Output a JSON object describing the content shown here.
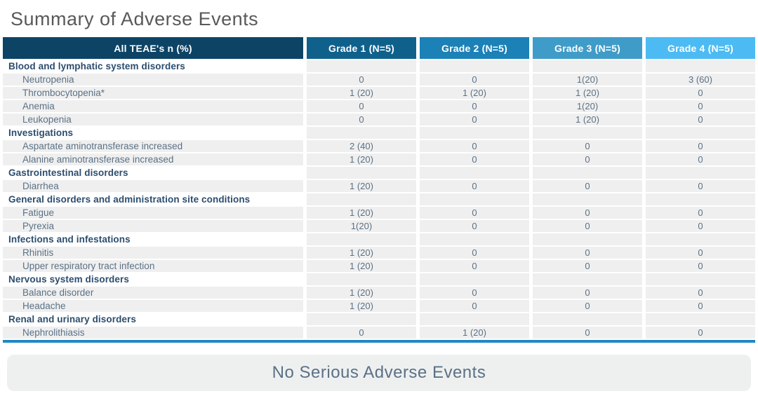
{
  "title": "Summary of Adverse Events",
  "table": {
    "columns": [
      "All TEAE's n (%)",
      "Grade 1 (N=5)",
      "Grade 2 (N=5)",
      "Grade 3 (N=5)",
      "Grade 4 (N=5)"
    ],
    "header_colors": [
      "#0d4466",
      "#0f618c",
      "#1b81b6",
      "#3f9cc8",
      "#4cbbf3"
    ],
    "rows": [
      {
        "type": "category",
        "label": "Blood and lymphatic system disorders",
        "values": [
          "",
          "",
          "",
          ""
        ]
      },
      {
        "type": "item",
        "label": "Neutropenia",
        "values": [
          "0",
          "0",
          "1(20)",
          "3 (60)"
        ]
      },
      {
        "type": "item",
        "label": "Thrombocytopenia*",
        "values": [
          "1 (20)",
          "1 (20)",
          "1 (20)",
          "0"
        ]
      },
      {
        "type": "item",
        "label": "Anemia",
        "values": [
          "0",
          "0",
          "1(20)",
          "0"
        ]
      },
      {
        "type": "item",
        "label": "Leukopenia",
        "values": [
          "0",
          "0",
          "1 (20)",
          "0"
        ]
      },
      {
        "type": "category",
        "label": "Investigations",
        "values": [
          "",
          "",
          "",
          ""
        ]
      },
      {
        "type": "item",
        "label": "Aspartate aminotransferase increased",
        "values": [
          "2 (40)",
          "0",
          "0",
          "0"
        ]
      },
      {
        "type": "item",
        "label": "Alanine aminotransferase increased",
        "values": [
          "1 (20)",
          "0",
          "0",
          "0"
        ]
      },
      {
        "type": "category",
        "label": "Gastrointestinal disorders",
        "values": [
          "",
          "",
          "",
          ""
        ]
      },
      {
        "type": "item",
        "label": "Diarrhea",
        "values": [
          "1 (20)",
          "0",
          "0",
          "0"
        ]
      },
      {
        "type": "category",
        "label": "General disorders and administration site conditions",
        "values": [
          "",
          "",
          "",
          ""
        ]
      },
      {
        "type": "item",
        "label": "Fatigue",
        "values": [
          "1 (20)",
          "0",
          "0",
          "0"
        ]
      },
      {
        "type": "item",
        "label": "Pyrexia",
        "values": [
          "1(20)",
          "0",
          "0",
          "0"
        ]
      },
      {
        "type": "category",
        "label": "Infections and infestations",
        "values": [
          "",
          "",
          "",
          ""
        ]
      },
      {
        "type": "item",
        "label": "Rhinitis",
        "values": [
          "1 (20)",
          "0",
          "0",
          "0"
        ]
      },
      {
        "type": "item",
        "label": "Upper respiratory tract infection",
        "values": [
          "1 (20)",
          "0",
          "0",
          "0"
        ]
      },
      {
        "type": "category",
        "label": "Nervous system disorders",
        "values": [
          "",
          "",
          "",
          ""
        ]
      },
      {
        "type": "item",
        "label": "Balance disorder",
        "values": [
          "1 (20)",
          "0",
          "0",
          "0"
        ]
      },
      {
        "type": "item",
        "label": "Headache",
        "values": [
          "1 (20)",
          "0",
          "0",
          "0"
        ]
      },
      {
        "type": "category",
        "label": "Renal and urinary disorders",
        "values": [
          "",
          "",
          "",
          ""
        ]
      },
      {
        "type": "item",
        "label": "Nephrolithiasis",
        "values": [
          "0",
          "1 (20)",
          "0",
          "0"
        ]
      }
    ]
  },
  "bottom_line_color": "#1e88c6",
  "banner": {
    "text": "No Serious Adverse Events",
    "background": "#eef0f0"
  },
  "colors": {
    "title_text": "#595959",
    "category_text": "#2c4d6e",
    "body_text": "#5b7185",
    "row_background": "#efefef"
  }
}
